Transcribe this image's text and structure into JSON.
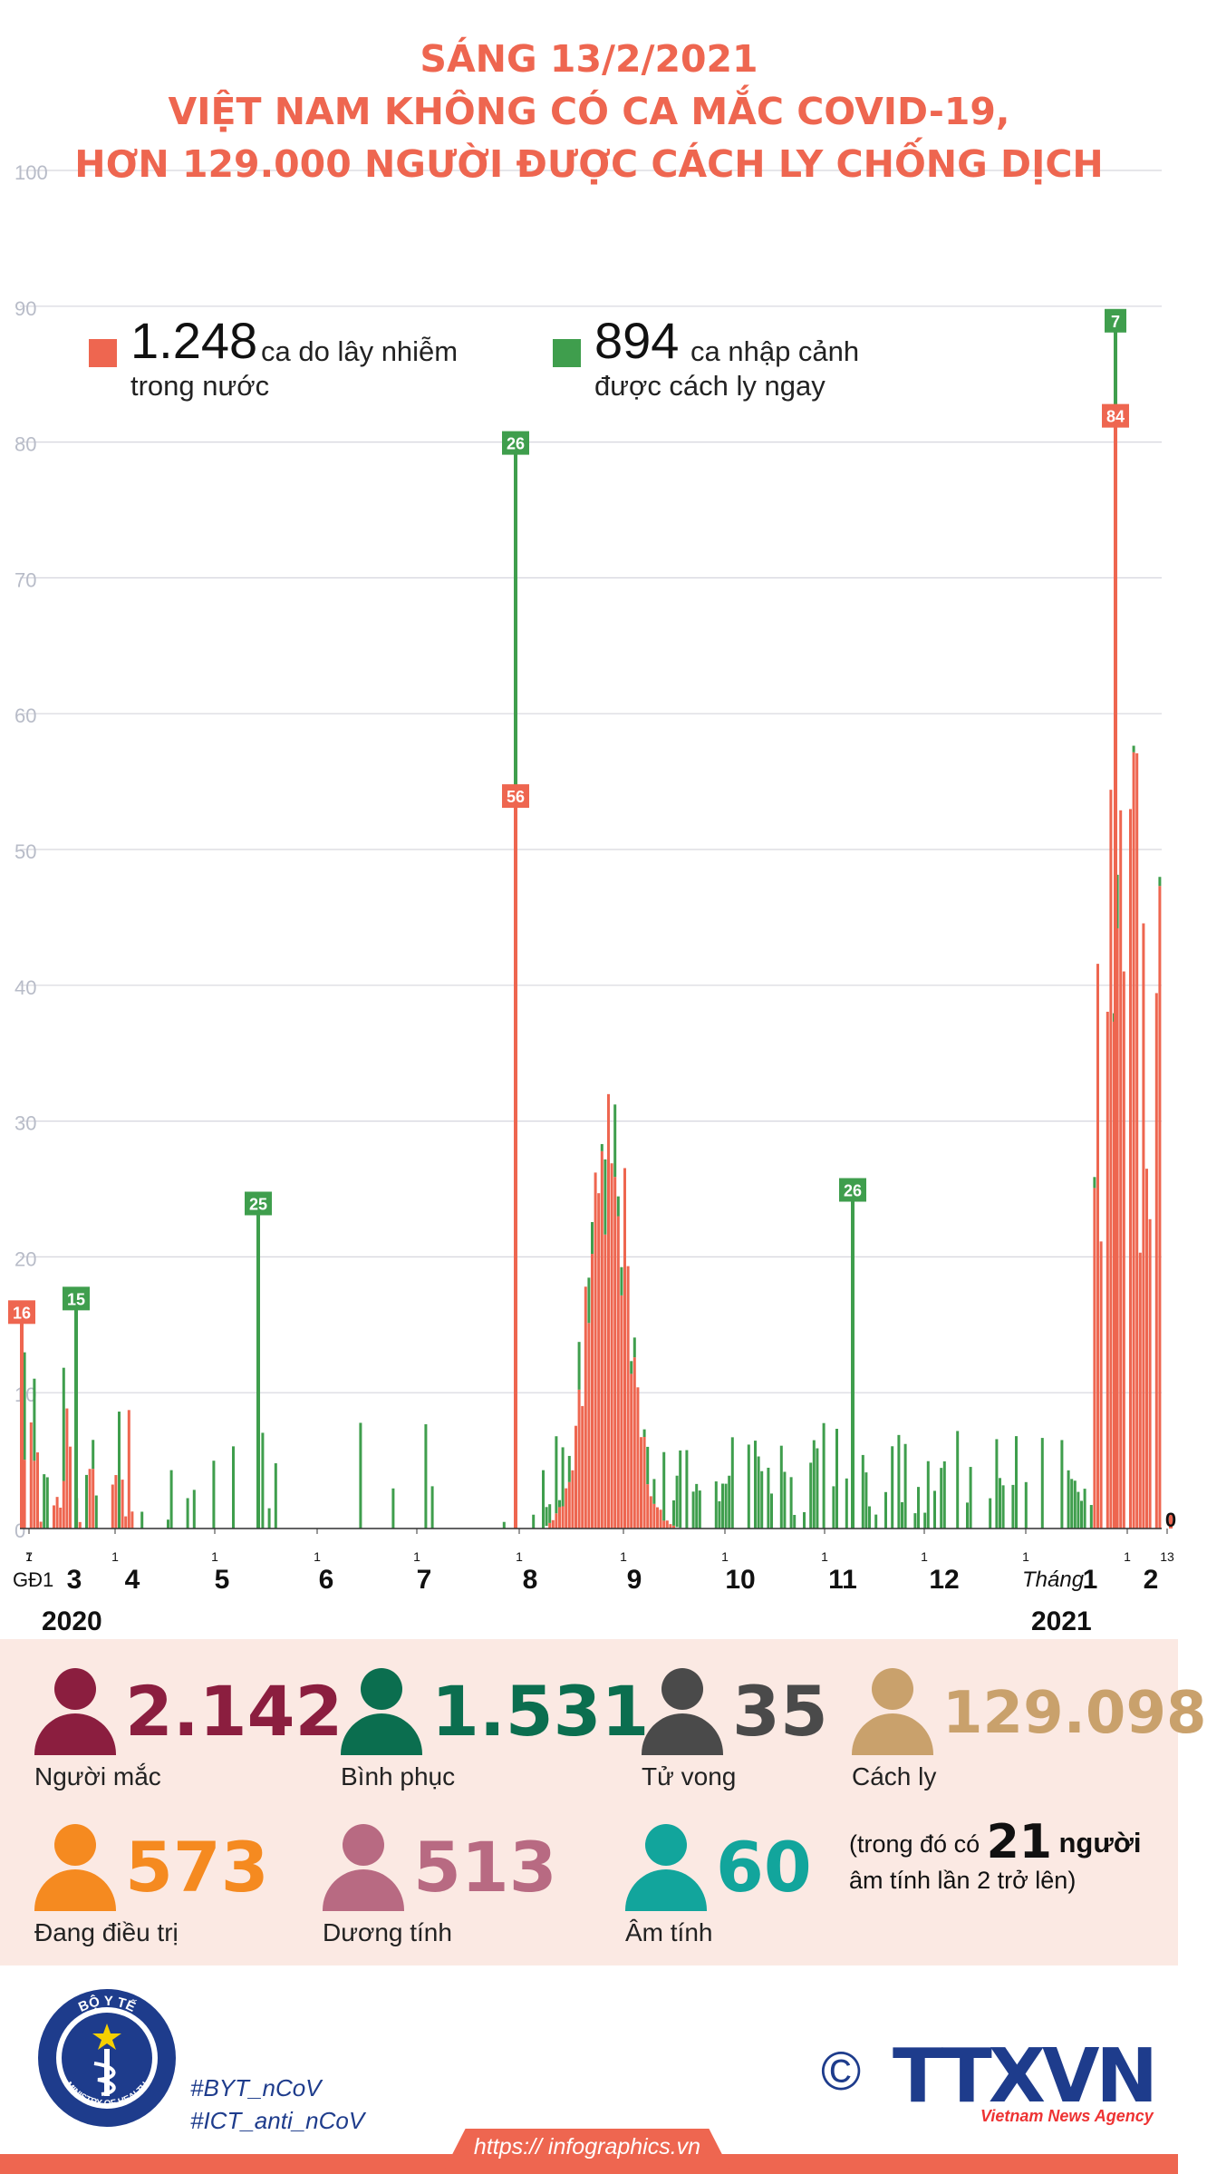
{
  "title": {
    "line1": "SÁNG 13/2/2021",
    "line2": "VIỆT NAM KHÔNG CÓ CA MẮC COVID-19,",
    "line3": "HƠN 129.000 NGƯỜI ĐƯỢC CÁCH LY CHỐNG DỊCH"
  },
  "legend": {
    "domestic": {
      "value": "1.248",
      "line1": "ca do lây nhiễm",
      "line2": "trong nước",
      "color": "#ee6650"
    },
    "imported": {
      "value": "894",
      "line1": "ca nhập cảnh",
      "line2": "được cách ly ngay",
      "color": "#3f9e4d"
    }
  },
  "chart_data": {
    "type": "bar",
    "stacked": true,
    "ylim": [
      0,
      100
    ],
    "yticks": [
      0,
      10,
      20,
      30,
      40,
      50,
      60,
      70,
      80,
      90,
      100
    ],
    "grid": true,
    "series": [
      {
        "name": "ca do lây nhiễm trong nước",
        "color": "#ee6650"
      },
      {
        "name": "ca nhập cảnh được cách ly ngay",
        "color": "#3f9e4d"
      }
    ],
    "x_start_label": "GĐ1",
    "month_labels": [
      "3",
      "4",
      "5",
      "6",
      "7",
      "8",
      "9",
      "10",
      "11",
      "12",
      "1",
      "2"
    ],
    "month_prefix_2021": "Tháng",
    "day_markers": [
      "7",
      "1",
      "1",
      "1",
      "1",
      "1",
      "1",
      "1",
      "1",
      "1",
      "1",
      "1",
      "1",
      "13"
    ],
    "year_labels": [
      "2020",
      "2021"
    ],
    "annotations": [
      {
        "text": "16",
        "series": 0,
        "y": 16
      },
      {
        "text": "15",
        "series": 1,
        "y": 17
      },
      {
        "text": "25",
        "series": 1,
        "y": 24
      },
      {
        "text": "56",
        "series": 0,
        "y": 54
      },
      {
        "text": "26",
        "series": 1,
        "y": 80
      },
      {
        "text": "26",
        "series": 1,
        "y": 25
      },
      {
        "text": "84",
        "series": 0,
        "y": 82
      },
      {
        "text": "7",
        "series": 1,
        "y": 89
      },
      {
        "text": "0",
        "series": 0,
        "y": 1
      }
    ]
  },
  "stats": {
    "nguoi_mac": {
      "value": "2.142",
      "label": "Người mắc",
      "color": "#8b1e3f"
    },
    "binh_phuc": {
      "value": "1.531",
      "label": "Bình phục",
      "color": "#0b6e4f"
    },
    "tu_vong": {
      "value": "35",
      "label": "Tử vong",
      "color": "#4a4a4a"
    },
    "cach_ly": {
      "value": "129.098",
      "label": "Cách ly",
      "color": "#c9a16c"
    },
    "dang_dieu_tri": {
      "value": "573",
      "label": "Đang điều trị",
      "color": "#f58a20"
    },
    "duong_tinh": {
      "value": "513",
      "label": "Dương tính",
      "color": "#b86a82"
    },
    "am_tinh": {
      "value": "60",
      "label": "Âm tính",
      "color": "#12a59c"
    },
    "note": {
      "prefix": "(trong đó có",
      "number": "21",
      "unit": "người",
      "line2": "âm tính lần 2 trở lên)"
    }
  },
  "footer": {
    "logo_top": "BỘ Y TẾ",
    "logo_bottom": "MINISTRY OF HEALTH",
    "hashtag1": "#BYT_nCoV",
    "hashtag2": "#ICT_anti_nCoV",
    "url": "https:// infographics.vn",
    "agency": "TTXVN",
    "agency_sub": "Vietnam News Agency"
  }
}
